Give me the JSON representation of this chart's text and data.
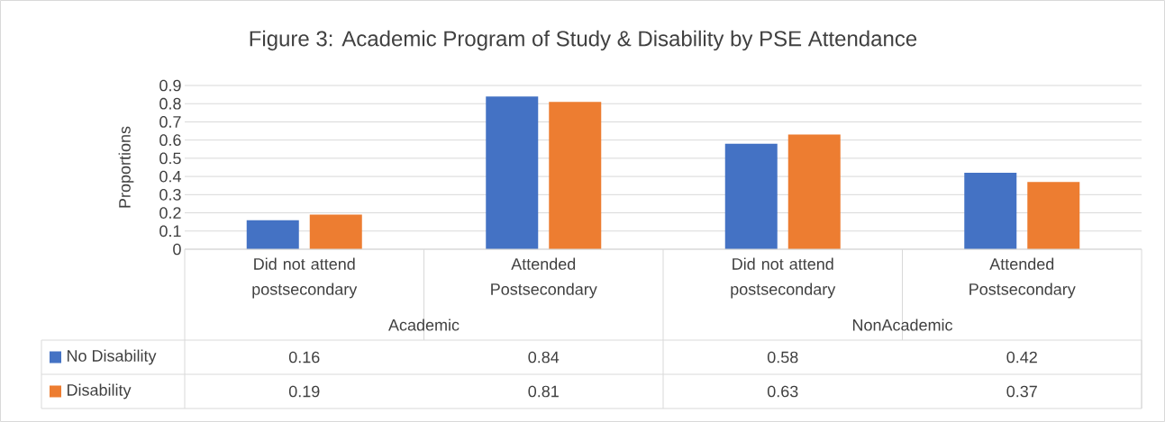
{
  "chart_data": {
    "type": "bar",
    "title": "Figure 3: Academic Program of Study & Disability by PSE Attendance",
    "ylabel": "Proportions",
    "categories": [
      "Did not attend postsecondary",
      "Attended Postsecondary",
      "Did not attend postsecondary",
      "Attended Postsecondary"
    ],
    "annotations": [
      "Academic",
      "NonAcademic"
    ],
    "series": [
      {
        "name": "No Disability",
        "color": "#4472c4",
        "values": [
          0.16,
          0.84,
          0.58,
          0.42
        ]
      },
      {
        "name": "Disability",
        "color": "#ed7d31",
        "values": [
          0.19,
          0.81,
          0.63,
          0.37
        ]
      }
    ],
    "ylim": [
      0,
      0.9
    ],
    "yticks": [
      0,
      0.1,
      0.2,
      0.3,
      0.4,
      0.5,
      0.6,
      0.7,
      0.8,
      0.9
    ],
    "grid": "y",
    "legend": "bottom",
    "data_labels": true
  }
}
